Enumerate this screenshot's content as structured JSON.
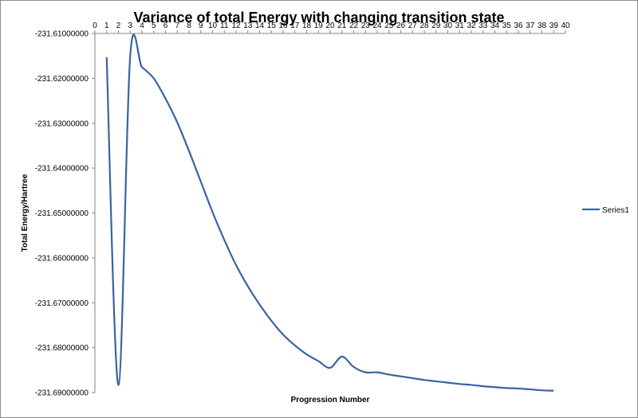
{
  "chart_data": {
    "type": "line",
    "title": "Variance of total Energy with changing transition state",
    "xlabel": "Progression Number",
    "ylabel": "Total Energy/Hartree",
    "xlim": [
      0,
      40
    ],
    "ylim": [
      -231.69,
      -231.61
    ],
    "x_ticks": [
      0,
      1,
      2,
      3,
      4,
      5,
      6,
      7,
      8,
      9,
      10,
      11,
      12,
      13,
      14,
      15,
      16,
      17,
      18,
      19,
      20,
      21,
      22,
      23,
      24,
      25,
      26,
      27,
      28,
      29,
      30,
      31,
      32,
      33,
      34,
      35,
      36,
      37,
      38,
      39,
      40
    ],
    "y_ticks": [
      "-231.61000000",
      "-231.62000000",
      "-231.63000000",
      "-231.64000000",
      "-231.65000000",
      "-231.66000000",
      "-231.67000000",
      "-231.68000000",
      "-231.69000000"
    ],
    "y_tick_values": [
      -231.61,
      -231.62,
      -231.63,
      -231.64,
      -231.65,
      -231.66,
      -231.67,
      -231.68,
      -231.69
    ],
    "x_axis_position": "top",
    "grid": false,
    "legend_position": "right",
    "series": [
      {
        "name": "Series1",
        "color": "#3a63a0",
        "x": [
          1,
          2,
          3,
          4,
          5,
          6,
          7,
          8,
          9,
          10,
          11,
          12,
          13,
          14,
          15,
          16,
          17,
          18,
          19,
          20,
          21,
          22,
          23,
          24,
          25,
          26,
          27,
          28,
          29,
          30,
          31,
          32,
          33,
          34,
          35,
          36,
          37,
          38,
          39
        ],
        "y": [
          -231.6153,
          -231.6883,
          -231.6151,
          -231.6175,
          -231.62,
          -231.6245,
          -231.6298,
          -231.6362,
          -231.643,
          -231.6498,
          -231.656,
          -231.6616,
          -231.6663,
          -231.6704,
          -231.674,
          -231.6771,
          -231.6795,
          -231.6815,
          -231.683,
          -231.6845,
          -231.682,
          -231.6843,
          -231.6855,
          -231.6855,
          -231.686,
          -231.6864,
          -231.6868,
          -231.6872,
          -231.6875,
          -231.6878,
          -231.6881,
          -231.6883,
          -231.6886,
          -231.6888,
          -231.689,
          -231.6891,
          -231.6893,
          -231.6895,
          -231.6896
        ]
      }
    ]
  }
}
